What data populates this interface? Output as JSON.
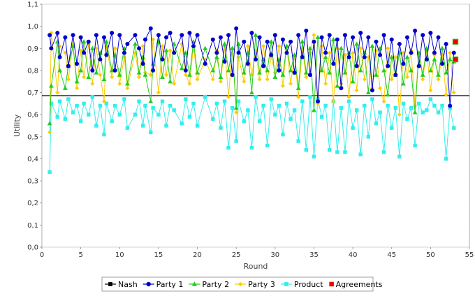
{
  "chart_data": {
    "type": "line",
    "xlabel": "Round",
    "ylabel": "Utility",
    "xlim": [
      0,
      55
    ],
    "ylim": [
      0,
      1.1
    ],
    "x_ticks": [
      "0",
      "5",
      "10",
      "15",
      "20",
      "25",
      "30",
      "35",
      "40",
      "45",
      "50",
      "55"
    ],
    "y_ticks": [
      "0,0",
      "0,1",
      "0,2",
      "0,3",
      "0,4",
      "0,5",
      "0,6",
      "0,7",
      "0,8",
      "0,9",
      "1,0",
      "1,1"
    ],
    "nash_value": 0.686,
    "legend_position": "bottom",
    "legend": [
      "Nash",
      "Party 1",
      "Party 2",
      "Party 3",
      "Product",
      "Agreements"
    ],
    "series": [
      {
        "name": "Party 1",
        "color": "#0000cc",
        "marker": "circle",
        "x": [
          1.0,
          1.2,
          2.0,
          2.3,
          3.0,
          3.4,
          4.0,
          4.5,
          5.0,
          5.4,
          6.0,
          6.5,
          7.0,
          7.5,
          8.0,
          8.3,
          9.0,
          9.4,
          10.0,
          10.6,
          11.0,
          12.0,
          12.5,
          13.0,
          13.3,
          14.0,
          14.3,
          15.0,
          15.5,
          16.0,
          16.5,
          17.0,
          18.0,
          18.5,
          19.0,
          19.5,
          20.0,
          21.0,
          22.0,
          22.5,
          23.0,
          23.5,
          24.0,
          24.5,
          25.0,
          25.3,
          26.0,
          26.5,
          27.0,
          27.5,
          28.0,
          28.5,
          29.0,
          29.5,
          30.0,
          30.5,
          31.0,
          31.5,
          32.0,
          32.5,
          33.0,
          33.5,
          34.0,
          34.5,
          35.0,
          35.5,
          36.0,
          36.5,
          37.0,
          37.5,
          38.0,
          38.5,
          39.0,
          39.5,
          40.0,
          40.5,
          41.0,
          41.5,
          42.0,
          42.5,
          43.0,
          43.5,
          44.0,
          44.5,
          45.0,
          45.5,
          46.0,
          46.5,
          47.0,
          47.5,
          48.0,
          48.5,
          49.0,
          49.5,
          50.0,
          50.5,
          51.0,
          51.5,
          52.0,
          52.5,
          53.0
        ],
        "y": [
          0.96,
          0.9,
          0.97,
          0.86,
          0.95,
          0.82,
          0.96,
          0.83,
          0.95,
          0.88,
          0.93,
          0.8,
          0.96,
          0.85,
          0.95,
          0.87,
          0.97,
          0.8,
          0.96,
          0.88,
          0.92,
          0.96,
          0.9,
          0.83,
          0.94,
          0.99,
          0.8,
          0.96,
          0.85,
          0.95,
          0.97,
          0.88,
          0.96,
          0.8,
          0.97,
          0.91,
          0.96,
          0.83,
          0.94,
          0.88,
          0.95,
          0.84,
          0.96,
          0.78,
          0.99,
          0.88,
          0.93,
          0.83,
          0.97,
          0.85,
          0.95,
          0.82,
          0.93,
          0.87,
          0.96,
          0.8,
          0.94,
          0.88,
          0.93,
          0.79,
          0.96,
          0.86,
          0.98,
          0.78,
          0.93,
          0.66,
          0.95,
          0.88,
          0.96,
          0.83,
          0.94,
          0.72,
          0.96,
          0.86,
          0.95,
          0.82,
          0.97,
          0.86,
          0.95,
          0.71,
          0.93,
          0.87,
          0.96,
          0.82,
          0.94,
          0.78,
          0.92,
          0.83,
          0.95,
          0.88,
          0.98,
          0.82,
          0.96,
          0.85,
          0.97,
          0.88,
          0.95,
          0.83,
          0.92,
          0.64,
          0.88
        ]
      },
      {
        "name": "Party 2",
        "color": "#22cc22",
        "marker": "triangle",
        "x": [
          1.0,
          1.2,
          2.0,
          2.3,
          3.0,
          3.4,
          4.0,
          4.5,
          5.0,
          5.4,
          6.0,
          6.5,
          7.0,
          7.5,
          8.0,
          8.3,
          9.0,
          9.4,
          10.0,
          10.6,
          11.0,
          12.0,
          12.5,
          13.0,
          13.3,
          14.0,
          14.3,
          15.0,
          15.5,
          16.0,
          16.5,
          17.0,
          18.0,
          18.5,
          19.0,
          19.5,
          20.0,
          21.0,
          22.0,
          22.5,
          23.0,
          23.5,
          24.0,
          24.5,
          25.0,
          25.3,
          26.0,
          26.5,
          27.0,
          27.5,
          28.0,
          28.5,
          29.0,
          29.5,
          30.0,
          30.5,
          31.0,
          31.5,
          32.0,
          32.5,
          33.0,
          33.5,
          34.0,
          34.5,
          35.0,
          35.5,
          36.0,
          36.5,
          37.0,
          37.5,
          38.0,
          38.5,
          39.0,
          39.5,
          40.0,
          40.5,
          41.0,
          41.5,
          42.0,
          42.5,
          43.0,
          43.5,
          44.0,
          44.5,
          45.0,
          45.5,
          46.0,
          46.5,
          47.0,
          47.5,
          48.0,
          48.5,
          49.0,
          49.5,
          50.0,
          50.5,
          51.0,
          51.5,
          52.0,
          52.5,
          53.0
        ],
        "y": [
          0.56,
          0.73,
          0.93,
          0.8,
          0.72,
          0.82,
          0.91,
          0.75,
          0.8,
          0.93,
          0.77,
          0.9,
          0.79,
          0.88,
          0.76,
          0.93,
          0.8,
          0.87,
          0.78,
          0.9,
          0.74,
          0.92,
          0.79,
          0.86,
          0.78,
          0.66,
          0.83,
          0.93,
          0.77,
          0.89,
          0.75,
          0.92,
          0.81,
          0.88,
          0.78,
          0.93,
          0.79,
          0.9,
          0.8,
          0.86,
          0.77,
          0.92,
          0.8,
          0.9,
          0.63,
          0.92,
          0.79,
          0.88,
          0.7,
          0.96,
          0.79,
          0.85,
          0.8,
          0.93,
          0.77,
          0.85,
          0.78,
          0.91,
          0.8,
          0.87,
          0.72,
          0.93,
          0.79,
          0.9,
          0.62,
          0.95,
          0.8,
          0.86,
          0.79,
          0.94,
          0.73,
          0.9,
          0.79,
          0.88,
          0.75,
          0.92,
          0.8,
          0.88,
          0.7,
          0.91,
          0.78,
          0.9,
          0.8,
          0.69,
          0.86,
          0.78,
          0.88,
          0.74,
          0.86,
          0.8,
          0.61,
          0.88,
          0.78,
          0.9,
          0.8,
          0.85,
          0.78,
          0.9,
          0.79,
          0.85,
          0.84
        ]
      },
      {
        "name": "Party 3",
        "color": "#ffcc00",
        "marker": "diamond",
        "x": [
          1.0,
          1.2,
          2.0,
          2.3,
          3.0,
          3.4,
          4.0,
          4.5,
          5.0,
          5.4,
          6.0,
          6.5,
          7.0,
          7.5,
          8.0,
          8.3,
          9.0,
          9.4,
          10.0,
          10.6,
          11.0,
          12.0,
          12.5,
          13.0,
          13.3,
          14.0,
          14.3,
          15.0,
          15.5,
          16.0,
          16.5,
          17.0,
          18.0,
          18.5,
          19.0,
          19.5,
          20.0,
          21.0,
          22.0,
          22.5,
          23.0,
          23.5,
          24.0,
          24.5,
          25.0,
          25.3,
          26.0,
          26.5,
          27.0,
          27.5,
          28.0,
          28.5,
          29.0,
          29.5,
          30.0,
          30.5,
          31.0,
          31.5,
          32.0,
          32.5,
          33.0,
          33.5,
          34.0,
          34.5,
          35.0,
          35.5,
          36.0,
          36.5,
          37.0,
          37.5,
          38.0,
          38.5,
          39.0,
          39.5,
          40.0,
          40.5,
          41.0,
          41.5,
          42.0,
          42.5,
          43.0,
          43.5,
          44.0,
          44.5,
          45.0,
          45.5,
          46.0,
          46.5,
          47.0,
          47.5,
          48.0,
          48.5,
          49.0,
          49.5,
          50.0,
          50.5,
          51.0,
          51.5,
          52.0,
          52.5,
          53.0
        ],
        "y": [
          0.52,
          0.97,
          0.7,
          0.91,
          0.88,
          0.76,
          0.92,
          0.72,
          0.89,
          0.77,
          0.92,
          0.74,
          0.9,
          0.78,
          0.66,
          0.91,
          0.77,
          0.9,
          0.74,
          0.86,
          0.72,
          0.88,
          0.77,
          0.91,
          0.79,
          0.78,
          0.94,
          0.7,
          0.91,
          0.78,
          0.89,
          0.74,
          0.92,
          0.78,
          0.74,
          0.91,
          0.76,
          0.85,
          0.76,
          0.89,
          0.75,
          0.91,
          0.68,
          0.9,
          0.61,
          0.86,
          0.75,
          0.91,
          0.78,
          0.89,
          0.76,
          0.91,
          0.76,
          0.86,
          0.79,
          0.91,
          0.73,
          0.91,
          0.74,
          0.87,
          0.68,
          0.9,
          0.77,
          0.88,
          0.96,
          0.65,
          0.91,
          0.74,
          0.88,
          0.66,
          0.9,
          0.74,
          0.87,
          0.68,
          0.88,
          0.71,
          0.9,
          0.76,
          0.86,
          0.72,
          0.89,
          0.72,
          0.66,
          0.9,
          0.76,
          0.86,
          0.6,
          0.88,
          0.77,
          0.89,
          0.64,
          0.88,
          0.76,
          0.89,
          0.71,
          0.87,
          0.76,
          0.87,
          0.69,
          0.88,
          0.7
        ]
      },
      {
        "name": "Product",
        "color": "#33eeee",
        "marker": "square",
        "x": [
          1.0,
          1.2,
          2.0,
          2.3,
          3.0,
          3.4,
          4.0,
          4.5,
          5.0,
          5.4,
          6.0,
          6.5,
          7.0,
          7.5,
          8.0,
          8.3,
          9.0,
          9.4,
          10.0,
          10.6,
          11.0,
          12.0,
          12.5,
          13.0,
          13.3,
          14.0,
          14.3,
          15.0,
          15.5,
          16.0,
          16.5,
          17.0,
          18.0,
          18.5,
          19.0,
          19.5,
          20.0,
          21.0,
          22.0,
          22.5,
          23.0,
          23.5,
          24.0,
          24.5,
          25.0,
          25.3,
          26.0,
          26.5,
          27.0,
          27.5,
          28.0,
          28.5,
          29.0,
          29.5,
          30.0,
          30.5,
          31.0,
          31.5,
          32.0,
          32.5,
          33.0,
          33.5,
          34.0,
          34.5,
          35.0,
          35.5,
          36.0,
          36.5,
          37.0,
          37.5,
          38.0,
          38.5,
          39.0,
          39.5,
          40.0,
          40.5,
          41.0,
          41.5,
          42.0,
          42.5,
          43.0,
          43.5,
          44.0,
          44.5,
          45.0,
          45.5,
          46.0,
          46.5,
          47.0,
          47.5,
          48.0,
          48.5,
          49.0,
          49.5,
          50.0,
          50.5,
          51.0,
          51.5,
          52.0,
          52.5,
          53.0
        ],
        "y": [
          0.34,
          0.65,
          0.59,
          0.66,
          0.58,
          0.67,
          0.61,
          0.64,
          0.57,
          0.65,
          0.6,
          0.68,
          0.55,
          0.64,
          0.51,
          0.65,
          0.57,
          0.64,
          0.6,
          0.67,
          0.54,
          0.6,
          0.66,
          0.55,
          0.64,
          0.52,
          0.63,
          0.6,
          0.66,
          0.55,
          0.64,
          0.62,
          0.56,
          0.67,
          0.59,
          0.65,
          0.55,
          0.68,
          0.58,
          0.65,
          0.54,
          0.66,
          0.45,
          0.63,
          0.48,
          0.66,
          0.57,
          0.62,
          0.45,
          0.68,
          0.57,
          0.64,
          0.46,
          0.67,
          0.6,
          0.64,
          0.51,
          0.65,
          0.58,
          0.62,
          0.48,
          0.66,
          0.44,
          0.68,
          0.41,
          0.67,
          0.59,
          0.64,
          0.44,
          0.66,
          0.43,
          0.63,
          0.43,
          0.66,
          0.54,
          0.62,
          0.42,
          0.64,
          0.5,
          0.67,
          0.56,
          0.61,
          0.43,
          0.64,
          0.54,
          0.63,
          0.41,
          0.65,
          0.58,
          0.63,
          0.46,
          0.65,
          0.61,
          0.62,
          0.67,
          0.64,
          0.61,
          0.64,
          0.4,
          0.63,
          0.54
        ]
      },
      {
        "name": "Agreements",
        "color": "#ee0000",
        "marker": "square",
        "x": [
          53.2,
          53.2
        ],
        "y": [
          0.93,
          0.85
        ]
      }
    ]
  }
}
